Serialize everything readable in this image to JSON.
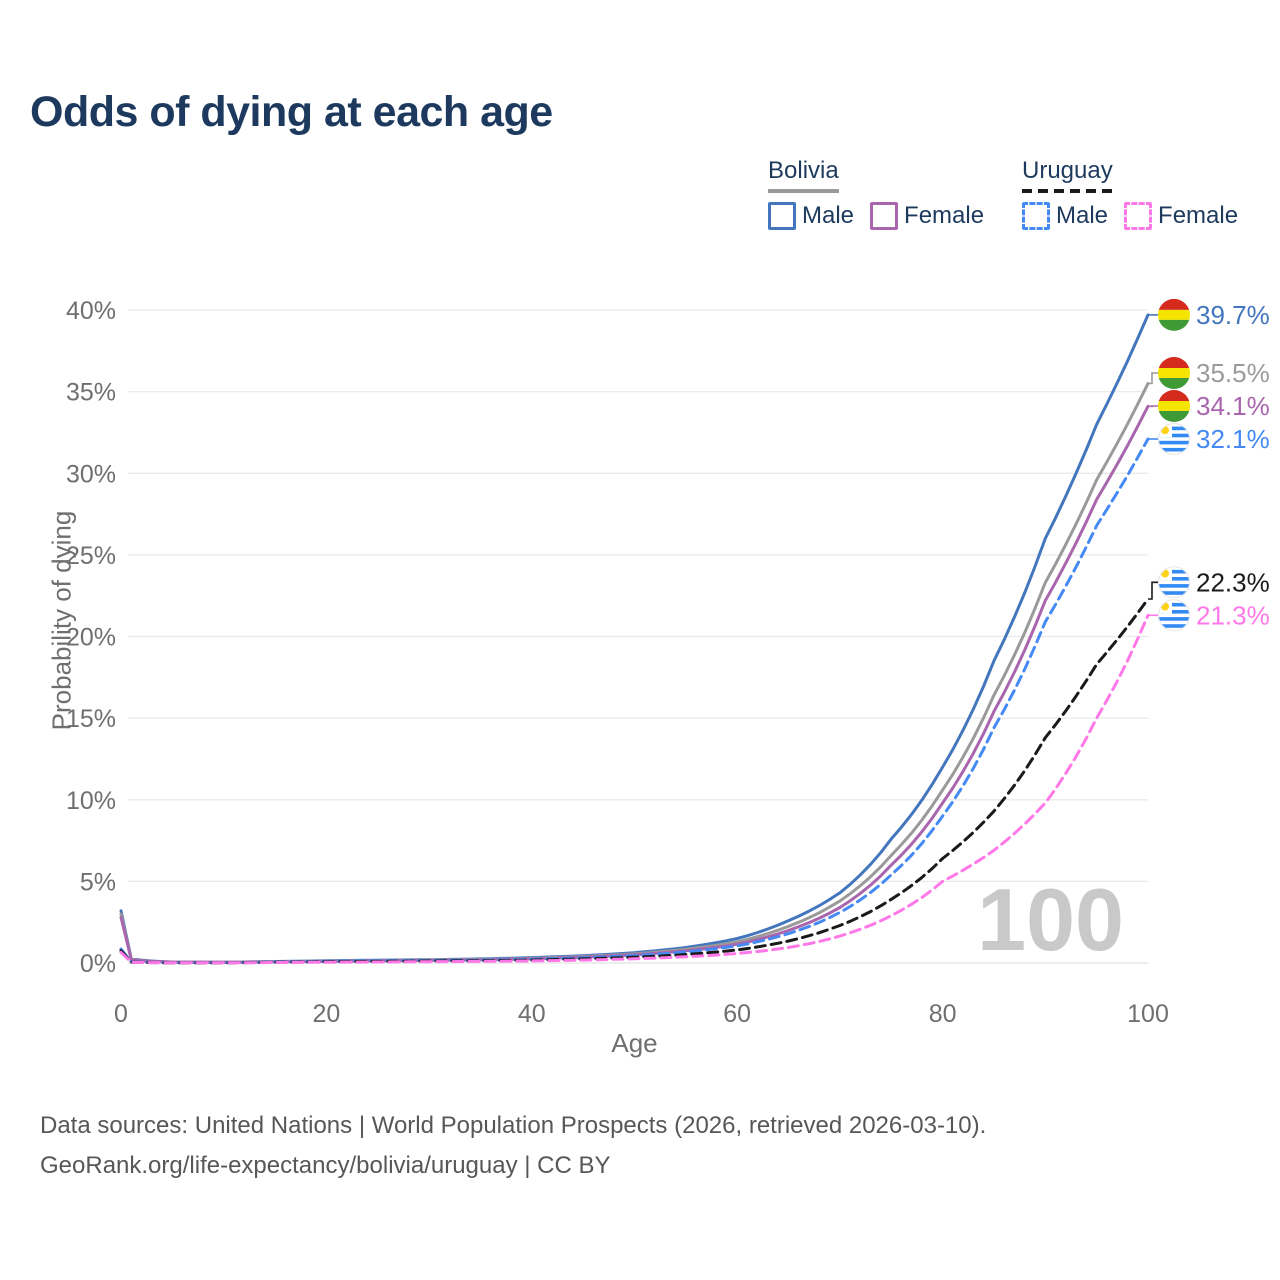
{
  "title": "Odds of dying at each age",
  "legend": {
    "groups": [
      {
        "country": "Bolivia",
        "style": "solid",
        "color": "#9a9a9a",
        "items": [
          {
            "label": "Male",
            "color": "#4376bd"
          },
          {
            "label": "Female",
            "color": "#a965ae"
          }
        ]
      },
      {
        "country": "Uruguay",
        "style": "dashed",
        "color": "#1a1a1a",
        "items": [
          {
            "label": "Male",
            "color": "#4489f4"
          },
          {
            "label": "Female",
            "color": "#ff78e8"
          }
        ]
      }
    ]
  },
  "watermark": "100",
  "footer": {
    "line1": "Data sources: United Nations | World Population Prospects (2026, retrieved 2026-03-10).",
    "line2": "GeoRank.org/life-expectancy/bolivia/uruguay | CC BY"
  },
  "chart_data": {
    "type": "line",
    "title": "Odds of dying at each age",
    "xlabel": "Age",
    "ylabel": "Probability of dying",
    "xlim": [
      0,
      100
    ],
    "ylim": [
      0,
      40
    ],
    "x_ticks": [
      0,
      20,
      40,
      60,
      80,
      100
    ],
    "y_ticks": [
      0,
      5,
      10,
      15,
      20,
      25,
      30,
      35,
      40
    ],
    "y_tick_suffix": "%",
    "grid": "horizontal",
    "legend_position": "top-right",
    "ages": [
      0,
      1,
      5,
      10,
      15,
      20,
      25,
      30,
      35,
      40,
      45,
      50,
      55,
      60,
      65,
      70,
      75,
      80,
      85,
      90,
      95,
      100
    ],
    "series": [
      {
        "id": "bolivia-male",
        "name": "Bolivia Male",
        "color": "#4376bd",
        "dashed": false,
        "flag": "bolivia",
        "end_label": "39.7%",
        "values": [
          3.2,
          0.25,
          0.06,
          0.05,
          0.09,
          0.14,
          0.17,
          0.2,
          0.25,
          0.33,
          0.45,
          0.63,
          0.95,
          1.5,
          2.6,
          4.3,
          7.6,
          12.0,
          18.5,
          26.0,
          33.0,
          39.7
        ]
      },
      {
        "id": "bolivia-total",
        "name": "Bolivia",
        "color": "#9a9a9a",
        "dashed": false,
        "flag": "bolivia",
        "end_label": "35.5%",
        "values": [
          3.0,
          0.22,
          0.055,
          0.045,
          0.08,
          0.12,
          0.15,
          0.18,
          0.22,
          0.29,
          0.4,
          0.56,
          0.84,
          1.3,
          2.25,
          3.8,
          6.6,
          10.6,
          16.4,
          23.3,
          29.6,
          35.5
        ]
      },
      {
        "id": "bolivia-female",
        "name": "Bolivia Female",
        "color": "#a965ae",
        "dashed": false,
        "flag": "bolivia",
        "end_label": "34.1%",
        "values": [
          2.8,
          0.2,
          0.05,
          0.04,
          0.07,
          0.1,
          0.13,
          0.16,
          0.2,
          0.26,
          0.36,
          0.5,
          0.75,
          1.15,
          2.0,
          3.4,
          6.0,
          9.8,
          15.4,
          22.2,
          28.4,
          34.1
        ]
      },
      {
        "id": "uruguay-male",
        "name": "Uruguay Male",
        "color": "#4489f4",
        "dashed": true,
        "flag": "uruguay",
        "end_label": "32.1%",
        "values": [
          0.85,
          0.06,
          0.02,
          0.02,
          0.06,
          0.11,
          0.13,
          0.15,
          0.18,
          0.23,
          0.32,
          0.45,
          0.68,
          1.05,
          1.8,
          3.1,
          5.4,
          9.0,
          14.4,
          20.9,
          26.8,
          32.1
        ]
      },
      {
        "id": "uruguay-total",
        "name": "Uruguay",
        "color": "#1a1a1a",
        "dashed": true,
        "flag": "uruguay",
        "end_label": "22.3%",
        "values": [
          0.75,
          0.05,
          0.015,
          0.015,
          0.045,
          0.08,
          0.1,
          0.12,
          0.14,
          0.18,
          0.25,
          0.35,
          0.52,
          0.8,
          1.35,
          2.3,
          3.9,
          6.4,
          9.3,
          13.8,
          18.3,
          22.3
        ]
      },
      {
        "id": "uruguay-female",
        "name": "Uruguay Female",
        "color": "#ff78e8",
        "dashed": true,
        "flag": "uruguay",
        "end_label": "21.3%",
        "values": [
          0.65,
          0.045,
          0.012,
          0.012,
          0.03,
          0.05,
          0.06,
          0.08,
          0.1,
          0.13,
          0.18,
          0.26,
          0.38,
          0.58,
          0.95,
          1.65,
          2.9,
          5.0,
          6.9,
          9.8,
          15.0,
          21.3
        ]
      }
    ]
  }
}
